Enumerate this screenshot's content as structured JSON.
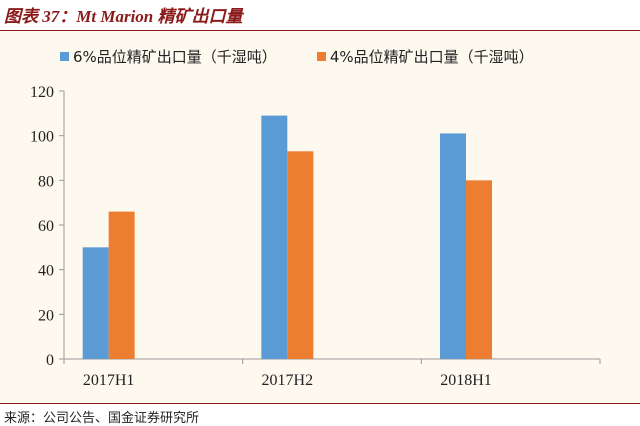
{
  "title": "图表 37：Mt Marion 精矿出口量",
  "source": "来源：公司公告、国金证券研究所",
  "chart_data": {
    "type": "bar",
    "title": "图表 37：Mt Marion 精矿出口量",
    "categories": [
      "2017H1",
      "2017H2",
      "2018H1"
    ],
    "series": [
      {
        "name": "6%品位精矿出口量（千湿吨）",
        "values": [
          50,
          109,
          101
        ],
        "color": "#5B9BD5"
      },
      {
        "name": "4%品位精矿出口量（千湿吨）",
        "values": [
          66,
          93,
          80
        ],
        "color": "#ED7D31"
      }
    ],
    "ylim": [
      0,
      120
    ],
    "yticks": [
      0,
      20,
      40,
      60,
      80,
      100,
      120
    ],
    "xlabel": "",
    "ylabel": "",
    "legend": "top-left",
    "grid": false
  }
}
